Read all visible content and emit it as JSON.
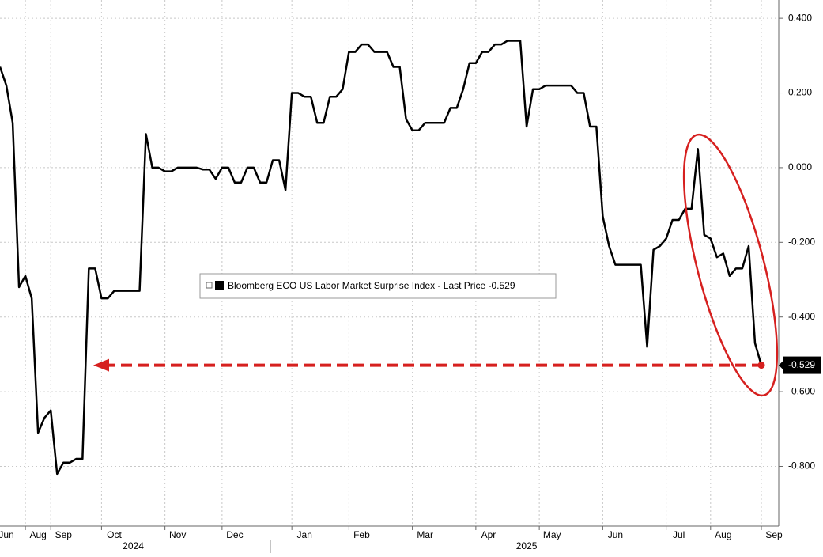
{
  "chart_data": {
    "type": "line",
    "categories": [
      null,
      "Jun",
      null,
      null,
      null,
      null,
      "Aug",
      null,
      null,
      null,
      "Sep",
      null,
      null,
      null,
      null,
      null,
      null,
      null,
      "Oct",
      null,
      null,
      null,
      null,
      null,
      null,
      null,
      null,
      null,
      "Nov",
      null,
      null,
      null,
      null,
      null,
      null,
      null,
      null,
      "Dec",
      null,
      null,
      null,
      null,
      null,
      null,
      null,
      null,
      null,
      null,
      "Jan",
      null,
      null,
      null,
      null,
      null,
      null,
      null,
      null,
      "Feb",
      null,
      null,
      null,
      null,
      null,
      null,
      null,
      null,
      null,
      "Mar",
      null,
      null,
      null,
      null,
      null,
      null,
      null,
      null,
      null,
      "Apr",
      null,
      null,
      null,
      null,
      null,
      null,
      null,
      null,
      null,
      "May",
      null,
      null,
      null,
      null,
      null,
      null,
      null,
      null,
      null,
      "Jun",
      null,
      null,
      null,
      null,
      null,
      null,
      null,
      null,
      null,
      "Jul",
      null,
      null,
      null,
      null,
      null,
      null,
      "Aug",
      null,
      null,
      null,
      null,
      null,
      null,
      null,
      "Sep"
    ],
    "category_groups": [
      null,
      null,
      null,
      null,
      null,
      null,
      null,
      null,
      null,
      null,
      null,
      null,
      null,
      null,
      null,
      null,
      null,
      null,
      null,
      null,
      null,
      "2024",
      null,
      null,
      null,
      null,
      null,
      null,
      null,
      null,
      null,
      null,
      null,
      null,
      null,
      null,
      null,
      null,
      null,
      null,
      null,
      null,
      null,
      null,
      null,
      null,
      null,
      null,
      null,
      null,
      null,
      null,
      null,
      null,
      null,
      null,
      null,
      null,
      null,
      null,
      null,
      null,
      null,
      null,
      null,
      null,
      null,
      null,
      null,
      null,
      null,
      null,
      null,
      null,
      null,
      null,
      null,
      null,
      null,
      null,
      null,
      null,
      null,
      "2025",
      null,
      null,
      null,
      null,
      null,
      null,
      null,
      null,
      null,
      null,
      null,
      null,
      null,
      null,
      null,
      null,
      null,
      null,
      null,
      null,
      null,
      null,
      null,
      null,
      null,
      null,
      null,
      null,
      null,
      null,
      null,
      null,
      null,
      null,
      null,
      null,
      null,
      null,
      null
    ],
    "series": [
      {
        "name": "Bloomberg ECO US Labor Market Surprise Index - Last Price",
        "color": "#000000",
        "values": [
          0.27,
          0.22,
          0.12,
          -0.32,
          -0.29,
          -0.35,
          -0.71,
          -0.67,
          -0.65,
          -0.82,
          -0.79,
          -0.79,
          -0.78,
          -0.78,
          -0.27,
          -0.27,
          -0.35,
          -0.35,
          -0.33,
          -0.33,
          -0.33,
          -0.33,
          -0.33,
          0.09,
          0.0,
          0.0,
          -0.01,
          -0.01,
          0.0,
          0.0,
          0.0,
          0.0,
          -0.005,
          -0.005,
          -0.03,
          0.0,
          0.0,
          -0.04,
          -0.04,
          0.0,
          0.0,
          -0.04,
          -0.04,
          0.02,
          0.02,
          -0.06,
          0.2,
          0.2,
          0.19,
          0.19,
          0.12,
          0.12,
          0.19,
          0.19,
          0.21,
          0.31,
          0.31,
          0.33,
          0.33,
          0.31,
          0.31,
          0.31,
          0.27,
          0.27,
          0.13,
          0.1,
          0.1,
          0.12,
          0.12,
          0.12,
          0.12,
          0.16,
          0.16,
          0.21,
          0.28,
          0.28,
          0.31,
          0.31,
          0.33,
          0.33,
          0.34,
          0.34,
          0.34,
          0.11,
          0.21,
          0.21,
          0.22,
          0.22,
          0.22,
          0.22,
          0.22,
          0.2,
          0.2,
          0.11,
          0.11,
          -0.13,
          -0.21,
          -0.26,
          -0.26,
          -0.26,
          -0.26,
          -0.26,
          -0.48,
          -0.22,
          -0.21,
          -0.19,
          -0.14,
          -0.14,
          -0.11,
          -0.11,
          0.05,
          -0.18,
          -0.19,
          -0.24,
          -0.23,
          -0.29,
          -0.27,
          -0.27,
          -0.21,
          -0.47,
          -0.529,
          null,
          null
        ]
      }
    ],
    "ylim": [
      -0.96,
      0.449
    ],
    "yticks": [
      {
        "value": 0.4,
        "label": "0.400"
      },
      {
        "value": 0.2,
        "label": "0.200"
      },
      {
        "value": 0,
        "label": "0.000"
      },
      {
        "value": -0.2,
        "label": "-0.200"
      },
      {
        "value": -0.4,
        "label": "-0.400"
      },
      {
        "value": -0.6,
        "label": "-0.600"
      },
      {
        "value": -0.8,
        "label": "-0.800"
      }
    ],
    "grid": true,
    "highlight_color": "#d6201f"
  }
}
